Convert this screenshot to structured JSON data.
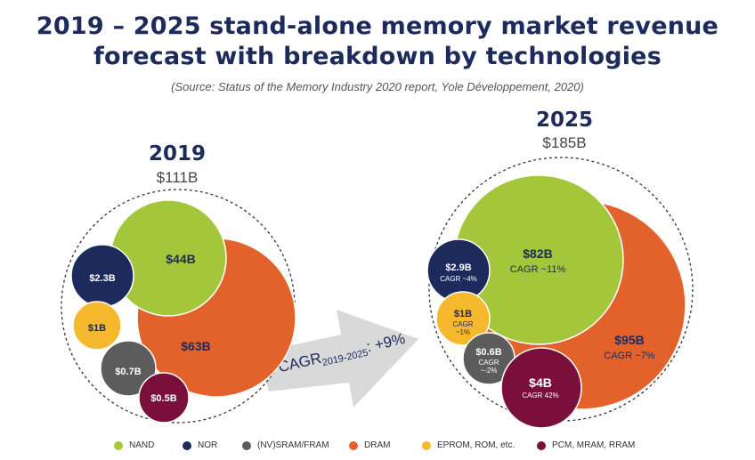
{
  "title_line1": "2019 – 2025 stand-alone memory market revenue",
  "title_line2": "forecast with breakdown by technologies",
  "source": "(Source: Status of the Memory Industry 2020 report, Yole Développement, 2020)",
  "cagr_main": "CAGR",
  "cagr_sub": "2019-2025",
  "cagr_value": ": +9%",
  "colors": {
    "NAND": "#a3c63a",
    "NOR": "#1c2a5c",
    "SRAM": "#5c5c5c",
    "DRAM": "#e3622b",
    "EPROM": "#f6b82c",
    "PCM": "#7a0f3b"
  },
  "legend": [
    {
      "key": "NAND",
      "label": "NAND"
    },
    {
      "key": "NOR",
      "label": "NOR"
    },
    {
      "key": "SRAM",
      "label": "(NV)SRAM/FRAM"
    },
    {
      "key": "DRAM",
      "label": "DRAM"
    },
    {
      "key": "EPROM",
      "label": "EPROM, ROM, etc."
    },
    {
      "key": "PCM",
      "label": "PCM, MRAM, RRAM"
    }
  ],
  "chart_data": [
    {
      "type": "bubble",
      "year": "2019",
      "total": "$111B",
      "values": [
        {
          "key": "DRAM",
          "label": "$63B",
          "value": 63
        },
        {
          "key": "NAND",
          "label": "$44B",
          "value": 44
        },
        {
          "key": "NOR",
          "label": "$2.3B",
          "value": 2.3
        },
        {
          "key": "EPROM",
          "label": "$1B",
          "value": 1
        },
        {
          "key": "SRAM",
          "label": "$0.7B",
          "value": 0.7
        },
        {
          "key": "PCM",
          "label": "$0.5B",
          "value": 0.5
        }
      ]
    },
    {
      "type": "bubble",
      "year": "2025",
      "total": "$185B",
      "values": [
        {
          "key": "DRAM",
          "label": "$95B",
          "cagr": "CAGR ~7%",
          "value": 95
        },
        {
          "key": "NAND",
          "label": "$82B",
          "cagr": "CAGR ~11%",
          "value": 82
        },
        {
          "key": "NOR",
          "label": "$2.9B",
          "cagr": "CAGR ~4%",
          "value": 2.9
        },
        {
          "key": "EPROM",
          "label": "$1B",
          "cagr": "CAGR ~1%",
          "value": 1
        },
        {
          "key": "SRAM",
          "label": "$0.6B",
          "cagr": "CAGR ~-2%",
          "value": 0.6
        },
        {
          "key": "PCM",
          "label": "$4B",
          "cagr": "CAGR 42%",
          "value": 4
        }
      ]
    }
  ]
}
